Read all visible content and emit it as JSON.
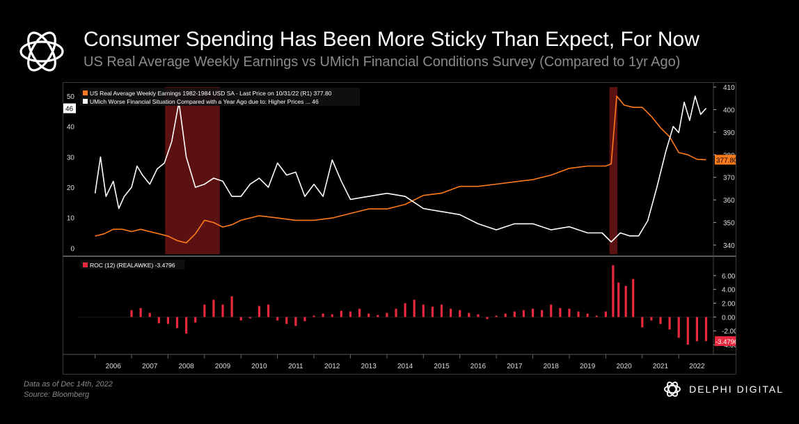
{
  "header": {
    "title": "Consumer Spending Has Been More Sticky Than Expect, For Now",
    "subtitle": "US Real Average Weekly Earnings vs UMich Financial Conditions Survey (Compared to 1yr Ago)"
  },
  "footer": {
    "note": "Data as of Dec 14th, 2022",
    "source": "Source: Bloomberg",
    "brand": "DELPHI DIGITAL"
  },
  "colors": {
    "earnings": "#ff7a1a",
    "umich": "#ffffff",
    "roc": "#e8283c",
    "recession": "#6b1414"
  },
  "chart_data": [
    {
      "type": "line",
      "legend": [
        "US Real Average Weekly Earnings 1982-1984 USD SA - Last Price on 10/31/22 (R1) 377.80",
        "UMich Worse Financial Situation Compared with a Year Ago due to: Higher Prices ... 46"
      ],
      "legend_position": "top-left",
      "x_ticks": [
        "2006",
        "2007",
        "2008",
        "2009",
        "2010",
        "2011",
        "2012",
        "2013",
        "2014",
        "2015",
        "2016",
        "2017",
        "2018",
        "2019",
        "2020",
        "2021",
        "2022"
      ],
      "left_axis": {
        "ticks": [
          0,
          10,
          20,
          30,
          40,
          50
        ],
        "ylim": [
          -2,
          53
        ],
        "last_label": "46"
      },
      "right_axis": {
        "ticks": [
          340,
          350,
          360,
          370,
          380,
          390,
          400,
          410
        ],
        "ylim": [
          336,
          410
        ],
        "last_label": "377.80"
      },
      "recessions": [
        [
          2007.92,
          2009.42
        ],
        [
          2020.1,
          2020.32
        ]
      ],
      "series": [
        {
          "name": "US Real Average Weekly Earnings 1982-1984 USD SA",
          "axis": "right",
          "x": [
            2006.0,
            2006.25,
            2006.5,
            2006.75,
            2007.0,
            2007.25,
            2007.5,
            2007.75,
            2008.0,
            2008.25,
            2008.5,
            2008.75,
            2009.0,
            2009.25,
            2009.5,
            2009.75,
            2010.0,
            2010.5,
            2011.0,
            2011.5,
            2012.0,
            2012.5,
            2013.0,
            2013.5,
            2014.0,
            2014.5,
            2015.0,
            2015.5,
            2016.0,
            2016.5,
            2017.0,
            2017.5,
            2018.0,
            2018.5,
            2019.0,
            2019.5,
            2020.0,
            2020.15,
            2020.3,
            2020.5,
            2020.75,
            2021.0,
            2021.25,
            2021.5,
            2021.75,
            2022.0,
            2022.25,
            2022.5,
            2022.75
          ],
          "values": [
            344,
            345,
            347,
            347,
            346,
            347,
            346,
            345,
            344,
            342,
            341,
            345,
            351,
            350,
            348,
            349,
            351,
            353,
            352,
            351,
            351,
            352,
            354,
            356,
            356,
            358,
            362,
            363,
            366,
            366,
            367,
            368,
            369,
            371,
            374,
            375,
            375,
            376,
            406,
            402,
            401,
            401,
            397,
            392,
            388,
            381,
            380,
            378,
            377.8
          ]
        },
        {
          "name": "UMich Worse Financial Situation Compared with a Year Ago due to: Higher Prices",
          "axis": "left",
          "x": [
            2006.0,
            2006.15,
            2006.3,
            2006.5,
            2006.65,
            2006.8,
            2007.0,
            2007.15,
            2007.3,
            2007.5,
            2007.7,
            2007.9,
            2008.1,
            2008.3,
            2008.5,
            2008.75,
            2009.0,
            2009.25,
            2009.5,
            2009.75,
            2010.0,
            2010.25,
            2010.5,
            2010.75,
            2011.0,
            2011.25,
            2011.5,
            2011.75,
            2012.0,
            2012.25,
            2012.5,
            2012.75,
            2013.0,
            2013.5,
            2014.0,
            2014.5,
            2015.0,
            2015.5,
            2016.0,
            2016.5,
            2017.0,
            2017.5,
            2018.0,
            2018.5,
            2019.0,
            2019.5,
            2019.9,
            2020.15,
            2020.4,
            2020.65,
            2020.9,
            2021.15,
            2021.4,
            2021.65,
            2021.85,
            2022.0,
            2022.15,
            2022.3,
            2022.45,
            2022.6,
            2022.75
          ],
          "values": [
            18,
            30,
            17,
            22,
            13,
            17,
            20,
            27,
            24,
            21,
            26,
            28,
            35,
            48,
            30,
            20,
            21,
            23,
            22,
            17,
            17,
            21,
            23,
            20,
            28,
            24,
            25,
            17,
            21,
            17,
            29,
            22,
            16,
            17,
            18,
            17,
            13,
            12,
            11,
            8,
            6,
            8,
            8,
            6,
            7,
            5,
            5,
            2,
            5,
            4,
            4,
            9,
            20,
            32,
            40,
            38,
            48,
            42,
            50,
            44,
            46
          ]
        }
      ]
    },
    {
      "type": "bar",
      "legend": [
        "ROC (12) (REALAWKE) -3.4796"
      ],
      "legend_position": "top-left",
      "right_axis": {
        "ticks": [
          -4.0,
          -2.0,
          0.0,
          2.0,
          4.0,
          6.0
        ],
        "labels": [
          "-4.00",
          "-2.00",
          "0.00",
          "2.00",
          "4.00",
          "6.00"
        ],
        "ylim": [
          -5.2,
          8.5
        ],
        "last_label": "-3.4796"
      },
      "x": [
        2007.0,
        2007.25,
        2007.5,
        2007.75,
        2008.0,
        2008.25,
        2008.5,
        2008.75,
        2009.0,
        2009.25,
        2009.5,
        2009.75,
        2010.0,
        2010.25,
        2010.5,
        2010.75,
        2011.0,
        2011.25,
        2011.5,
        2011.75,
        2012.0,
        2012.25,
        2012.5,
        2012.75,
        2013.0,
        2013.25,
        2013.5,
        2013.75,
        2014.0,
        2014.25,
        2014.5,
        2014.75,
        2015.0,
        2015.25,
        2015.5,
        2015.75,
        2016.0,
        2016.25,
        2016.5,
        2016.75,
        2017.0,
        2017.25,
        2017.5,
        2017.75,
        2018.0,
        2018.25,
        2018.5,
        2018.75,
        2019.0,
        2019.25,
        2019.5,
        2019.75,
        2020.0,
        2020.2,
        2020.35,
        2020.55,
        2020.75,
        2021.0,
        2021.25,
        2021.5,
        2021.75,
        2022.0,
        2022.25,
        2022.5,
        2022.75
      ],
      "values": [
        1.0,
        1.3,
        0.6,
        -0.9,
        -1.0,
        -1.6,
        -2.4,
        -0.8,
        1.8,
        2.5,
        1.8,
        3.0,
        -0.5,
        -0.2,
        1.6,
        1.8,
        -0.5,
        -1.0,
        -1.3,
        -0.6,
        0.2,
        0.5,
        0.4,
        0.9,
        0.8,
        1.2,
        0.5,
        0.3,
        0.6,
        1.2,
        2.0,
        2.5,
        1.8,
        1.5,
        1.8,
        1.2,
        1.0,
        0.6,
        0.4,
        -0.3,
        0.2,
        0.5,
        0.8,
        1.0,
        1.2,
        1.0,
        1.8,
        1.3,
        1.2,
        0.8,
        0.5,
        0.2,
        0.8,
        7.5,
        5.0,
        4.5,
        5.5,
        -1.5,
        -0.5,
        -1.0,
        -1.8,
        -3.0,
        -4.0,
        -3.5,
        -3.48
      ]
    }
  ]
}
